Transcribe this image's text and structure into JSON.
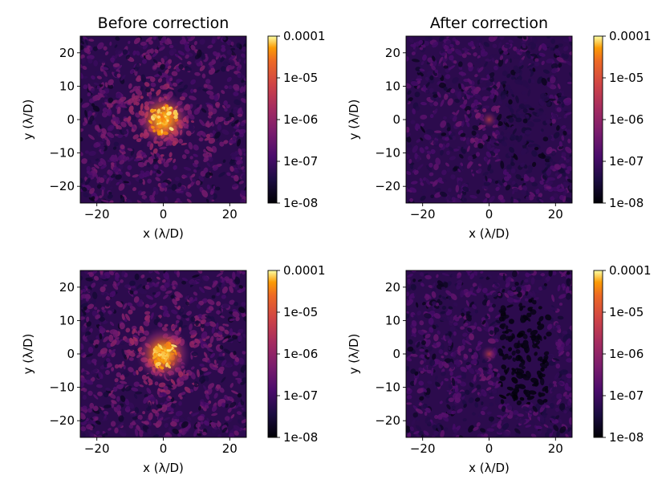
{
  "chart_data": [
    {
      "type": "heatmap",
      "panel": "top-left",
      "title": "Before correction",
      "xlabel": "x (λ/D)",
      "ylabel": "y (λ/D)",
      "xlim": [
        -25,
        25
      ],
      "ylim": [
        -25,
        25
      ],
      "xticks": [
        "−20",
        "0",
        "20"
      ],
      "yticks": [
        "20",
        "10",
        "0",
        "−10",
        "−20"
      ],
      "colormap": "inferno",
      "colorbar_scale": "log",
      "colorbar_range": [
        1e-08,
        0.0001
      ],
      "colorbar_ticks": [
        "0.0001",
        "1e-05",
        "1e-06",
        "1e-07",
        "1e-08"
      ],
      "dark_hole": null
    },
    {
      "type": "heatmap",
      "panel": "top-right",
      "title": "After correction",
      "xlabel": "x (λ/D)",
      "ylabel": "y (λ/D)",
      "xlim": [
        -25,
        25
      ],
      "ylim": [
        -25,
        25
      ],
      "xticks": [
        "−20",
        "0",
        "20"
      ],
      "yticks": [
        "20",
        "10",
        "0",
        "−10",
        "−20"
      ],
      "colormap": "inferno",
      "colorbar_scale": "log",
      "colorbar_range": [
        1e-08,
        0.0001
      ],
      "colorbar_ticks": [
        "0.0001",
        "1e-05",
        "1e-06",
        "1e-07",
        "1e-08"
      ],
      "dark_hole": {
        "x_range": [
          3,
          18
        ],
        "y_range": [
          -15,
          16
        ]
      }
    },
    {
      "type": "heatmap",
      "panel": "bottom-left",
      "title": "",
      "xlabel": "x (λ/D)",
      "ylabel": "y (λ/D)",
      "xlim": [
        -25,
        25
      ],
      "ylim": [
        -25,
        25
      ],
      "xticks": [
        "−20",
        "0",
        "20"
      ],
      "yticks": [
        "20",
        "10",
        "0",
        "−10",
        "−20"
      ],
      "colormap": "inferno",
      "colorbar_scale": "log",
      "colorbar_range": [
        1e-08,
        0.0001
      ],
      "colorbar_ticks": [
        "0.0001",
        "1e-05",
        "1e-06",
        "1e-07",
        "1e-08"
      ],
      "dark_hole": null
    },
    {
      "type": "heatmap",
      "panel": "bottom-right",
      "title": "",
      "xlabel": "x (λ/D)",
      "ylabel": "y (λ/D)",
      "xlim": [
        -25,
        25
      ],
      "ylim": [
        -25,
        25
      ],
      "xticks": [
        "−20",
        "0",
        "20"
      ],
      "yticks": [
        "20",
        "10",
        "0",
        "−10",
        "−20"
      ],
      "colormap": "inferno",
      "colorbar_scale": "log",
      "colorbar_range": [
        1e-08,
        0.0001
      ],
      "colorbar_ticks": [
        "0.0001",
        "1e-05",
        "1e-06",
        "1e-07",
        "1e-08"
      ],
      "dark_hole": {
        "x_range": [
          3,
          18
        ],
        "y_range": [
          -15,
          16
        ]
      }
    }
  ]
}
